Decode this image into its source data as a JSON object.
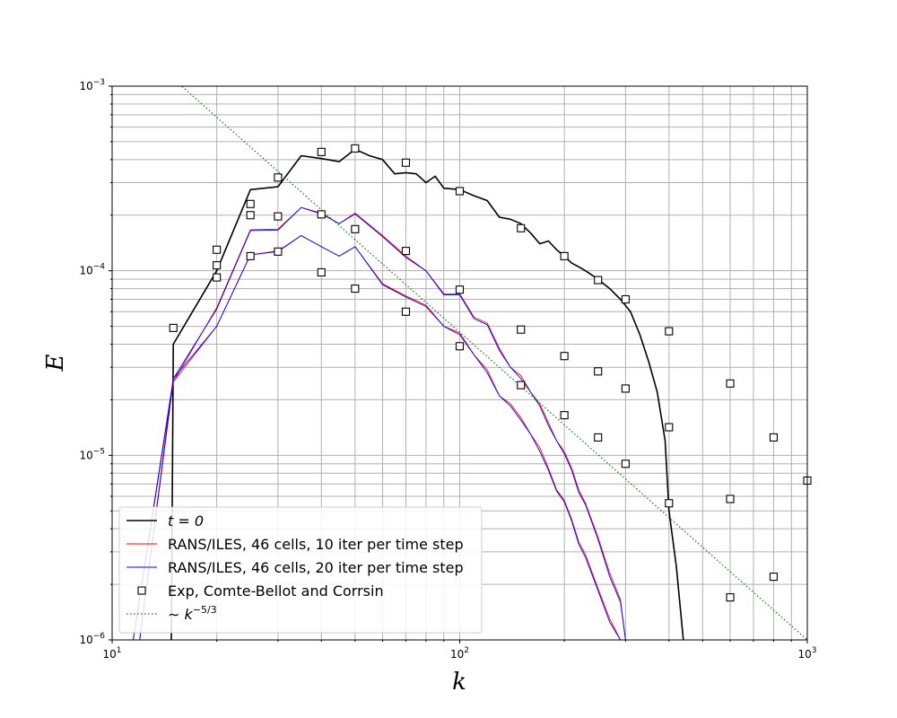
{
  "chart_data": {
    "type": "line",
    "title": "",
    "xlabel": "k",
    "ylabel": "E",
    "xscale": "log",
    "yscale": "log",
    "xlim": [
      10,
      1000
    ],
    "ylim": [
      1e-06,
      0.001
    ],
    "grid": "major and minor",
    "legend_position": "lower-left",
    "x_tick_labels": [
      {
        "value": 10,
        "base": "10",
        "exp": "1"
      },
      {
        "value": 100,
        "base": "10",
        "exp": "2"
      },
      {
        "value": 1000,
        "base": "10",
        "exp": "3"
      }
    ],
    "y_tick_labels": [
      {
        "value": 1e-06,
        "base": "10",
        "exp": "−6"
      },
      {
        "value": 1e-05,
        "base": "10",
        "exp": "−5"
      },
      {
        "value": 0.0001,
        "base": "10",
        "exp": "−4"
      },
      {
        "value": 0.001,
        "base": "10",
        "exp": "−3"
      }
    ],
    "series": [
      {
        "name": "t = 0",
        "legend_main": "t = 0",
        "legend_sup": "",
        "color": "#000000",
        "style": "line",
        "points": [
          [
            14.8,
            1e-06
          ],
          [
            15,
            4e-05
          ],
          [
            20,
            0.0001
          ],
          [
            25,
            0.000275
          ],
          [
            30,
            0.000285
          ],
          [
            35,
            0.00042
          ],
          [
            40,
            0.000405
          ],
          [
            45,
            0.00039
          ],
          [
            50,
            0.000455
          ],
          [
            55,
            0.00042
          ],
          [
            60,
            0.0004
          ],
          [
            65,
            0.000335
          ],
          [
            70,
            0.00034
          ],
          [
            75,
            0.000335
          ],
          [
            80,
            0.0003
          ],
          [
            85,
            0.000325
          ],
          [
            90,
            0.00028
          ],
          [
            100,
            0.000275
          ],
          [
            110,
            0.000255
          ],
          [
            120,
            0.00024
          ],
          [
            130,
            0.000195
          ],
          [
            140,
            0.00019
          ],
          [
            150,
            0.00018
          ],
          [
            160,
            0.00016
          ],
          [
            170,
            0.00014
          ],
          [
            180,
            0.000145
          ],
          [
            190,
            0.00013
          ],
          [
            200,
            0.00012
          ],
          [
            210,
            0.00011
          ],
          [
            220,
            0.000105
          ],
          [
            230,
            0.0001
          ],
          [
            250,
            9e-05
          ],
          [
            270,
            8e-05
          ],
          [
            290,
            7e-05
          ],
          [
            310,
            6e-05
          ],
          [
            330,
            4.5e-05
          ],
          [
            350,
            3.2e-05
          ],
          [
            370,
            2.2e-05
          ],
          [
            390,
            1.2e-05
          ],
          [
            400,
            5e-06
          ],
          [
            420,
            2.5e-06
          ],
          [
            440,
            1e-06
          ]
        ]
      },
      {
        "name": "RANS/ILES, 46 cells, 10 iter per time step",
        "legend_main": "RANS/ILES, 46 cells, 10 iter per time step",
        "legend_sup": "",
        "color": "#ff0000",
        "style": "line",
        "branches": [
          [
            [
              11.5,
              1e-06
            ],
            [
              15,
              2.5e-05
            ],
            [
              20,
              6.3e-05
            ],
            [
              25,
              0.000167
            ],
            [
              30,
              0.000168
            ],
            [
              35,
              0.00022
            ],
            [
              40,
              0.000205
            ],
            [
              45,
              0.00018
            ],
            [
              50,
              0.000205
            ],
            [
              60,
              0.000155
            ],
            [
              70,
              0.00012
            ],
            [
              80,
              0.0001
            ],
            [
              90,
              7.5e-05
            ],
            [
              100,
              7.5e-05
            ],
            [
              110,
              5.6e-05
            ],
            [
              120,
              5.2e-05
            ],
            [
              130,
              3.8e-05
            ],
            [
              140,
              3e-05
            ],
            [
              150,
              2.7e-05
            ],
            [
              160,
              2.2e-05
            ],
            [
              170,
              1.9e-05
            ],
            [
              180,
              1.5e-05
            ],
            [
              190,
              1.2e-05
            ],
            [
              200,
              1.05e-05
            ],
            [
              210,
              8.5e-06
            ],
            [
              220,
              6.5e-06
            ],
            [
              230,
              5.5e-06
            ],
            [
              250,
              3.6e-06
            ],
            [
              270,
              2.3e-06
            ],
            [
              290,
              1.65e-06
            ],
            [
              300,
              1e-06
            ]
          ],
          [
            [
              12,
              1e-06
            ],
            [
              15,
              2.5e-05
            ],
            [
              20,
              5e-05
            ],
            [
              25,
              0.000122
            ],
            [
              30,
              0.000128
            ],
            [
              35,
              0.000155
            ],
            [
              40,
              0.000135
            ],
            [
              45,
              0.00012
            ],
            [
              50,
              0.000135
            ],
            [
              60,
              8.5e-05
            ],
            [
              70,
              7.3e-05
            ],
            [
              80,
              6.5e-05
            ],
            [
              90,
              5e-05
            ],
            [
              100,
              4.6e-05
            ],
            [
              110,
              3.5e-05
            ],
            [
              120,
              2.9e-05
            ],
            [
              130,
              2.1e-05
            ],
            [
              140,
              1.9e-05
            ],
            [
              150,
              1.6e-05
            ],
            [
              160,
              1.3e-05
            ],
            [
              170,
              1.1e-05
            ],
            [
              180,
              8.5e-06
            ],
            [
              190,
              6.5e-06
            ],
            [
              200,
              5.7e-06
            ],
            [
              210,
              4.5e-06
            ],
            [
              220,
              3.4e-06
            ],
            [
              230,
              2.9e-06
            ],
            [
              250,
              1.9e-06
            ],
            [
              270,
              1.3e-06
            ],
            [
              290,
              1e-06
            ]
          ]
        ]
      },
      {
        "name": "RANS/ILES, 46 cells, 20 iter per time step",
        "legend_main": "RANS/ILES, 46 cells, 20 iter per time step",
        "legend_sup": "",
        "color": "#0000ff",
        "style": "line",
        "branches": [
          [
            [
              11.5,
              1e-06
            ],
            [
              15,
              2.6e-05
            ],
            [
              20,
              6.2e-05
            ],
            [
              25,
              0.000165
            ],
            [
              30,
              0.000166
            ],
            [
              35,
              0.00022
            ],
            [
              40,
              0.000203
            ],
            [
              45,
              0.00018
            ],
            [
              50,
              0.000203
            ],
            [
              60,
              0.000153
            ],
            [
              70,
              0.000118
            ],
            [
              80,
              0.0001
            ],
            [
              90,
              7.4e-05
            ],
            [
              100,
              7.4e-05
            ],
            [
              110,
              5.5e-05
            ],
            [
              120,
              5.1e-05
            ],
            [
              130,
              3.7e-05
            ],
            [
              140,
              3e-05
            ],
            [
              150,
              2.6e-05
            ],
            [
              160,
              2.2e-05
            ],
            [
              170,
              1.85e-05
            ],
            [
              180,
              1.45e-05
            ],
            [
              190,
              1.2e-05
            ],
            [
              200,
              1.02e-05
            ],
            [
              210,
              8.3e-06
            ],
            [
              220,
              6.3e-06
            ],
            [
              230,
              5.4e-06
            ],
            [
              250,
              3.5e-06
            ],
            [
              270,
              2.2e-06
            ],
            [
              290,
              1.6e-06
            ],
            [
              300,
              1e-06
            ]
          ],
          [
            [
              12,
              1e-06
            ],
            [
              15,
              2.6e-05
            ],
            [
              20,
              5e-05
            ],
            [
              25,
              0.000122
            ],
            [
              30,
              0.000127
            ],
            [
              35,
              0.000155
            ],
            [
              40,
              0.000135
            ],
            [
              45,
              0.00012
            ],
            [
              50,
              0.000135
            ],
            [
              60,
              8.4e-05
            ],
            [
              70,
              7.2e-05
            ],
            [
              80,
              6.4e-05
            ],
            [
              90,
              5e-05
            ],
            [
              100,
              4.5e-05
            ],
            [
              110,
              3.5e-05
            ],
            [
              120,
              2.8e-05
            ],
            [
              130,
              2.1e-05
            ],
            [
              140,
              1.85e-05
            ],
            [
              150,
              1.55e-05
            ],
            [
              160,
              1.3e-05
            ],
            [
              170,
              1.05e-05
            ],
            [
              180,
              8.3e-06
            ],
            [
              190,
              6.4e-06
            ],
            [
              200,
              5.6e-06
            ],
            [
              210,
              4.4e-06
            ],
            [
              220,
              3.3e-06
            ],
            [
              230,
              2.8e-06
            ],
            [
              250,
              1.85e-06
            ],
            [
              270,
              1.25e-06
            ],
            [
              290,
              1e-06
            ]
          ]
        ]
      },
      {
        "name": "Exp, Comte-Bellot and Corrsin",
        "legend_main": "Exp, Comte-Bellot and Corrsin",
        "legend_sup": "",
        "color": "#000000",
        "style": "marker",
        "points": [
          [
            15,
            4.9e-05
          ],
          [
            20,
            0.00013
          ],
          [
            20,
            0.000107
          ],
          [
            20,
            9.2e-05
          ],
          [
            25,
            0.00023
          ],
          [
            25,
            0.0002
          ],
          [
            25,
            0.00012
          ],
          [
            30,
            0.00032
          ],
          [
            30,
            0.000197
          ],
          [
            30,
            0.000127
          ],
          [
            40,
            0.00044
          ],
          [
            40,
            0.000202
          ],
          [
            40,
            9.8e-05
          ],
          [
            50,
            0.00046
          ],
          [
            50,
            0.000168
          ],
          [
            50,
            8e-05
          ],
          [
            70,
            0.000385
          ],
          [
            70,
            0.000128
          ],
          [
            70,
            6e-05
          ],
          [
            100,
            0.00027
          ],
          [
            100,
            7.9e-05
          ],
          [
            100,
            3.9e-05
          ],
          [
            150,
            0.00017
          ],
          [
            150,
            4.8e-05
          ],
          [
            150,
            2.4e-05
          ],
          [
            200,
            0.00012
          ],
          [
            200,
            3.45e-05
          ],
          [
            200,
            1.65e-05
          ],
          [
            250,
            8.9e-05
          ],
          [
            250,
            2.85e-05
          ],
          [
            250,
            1.25e-05
          ],
          [
            300,
            7e-05
          ],
          [
            300,
            2.3e-05
          ],
          [
            300,
            9e-06
          ],
          [
            400,
            4.7e-05
          ],
          [
            400,
            1.42e-05
          ],
          [
            400,
            5.5e-06
          ],
          [
            600,
            2.45e-05
          ],
          [
            600,
            5.8e-06
          ],
          [
            600,
            1.7e-06
          ],
          [
            800,
            1.25e-05
          ],
          [
            800,
            2.2e-06
          ],
          [
            1000,
            7.3e-06
          ]
        ]
      },
      {
        "name": "~ k^{-5/3}",
        "legend_main": "∼ k",
        "legend_sup": "−5/3",
        "color": "#008000",
        "style": "dotted",
        "reference": {
          "anchor_x": 1000,
          "anchor_y": 1e-06,
          "slope": -1.6667,
          "x_from": 10,
          "x_to": 1000
        }
      }
    ]
  }
}
